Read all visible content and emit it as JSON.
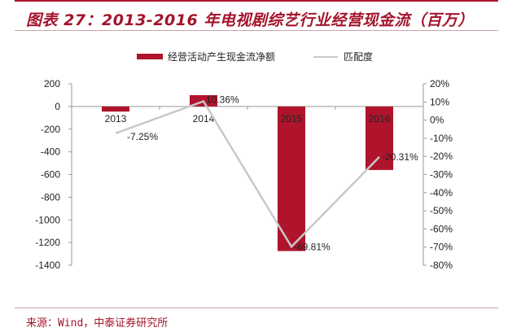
{
  "title": "图表 27：2013-2016 年电视剧综艺行业经营现金流（百万）",
  "source": "来源：Wind，中泰证券研究所",
  "colors": {
    "bar": "#b0142c",
    "line": "#c8c8c8",
    "accent": "#a3142b"
  },
  "chart_data": {
    "type": "bar+line",
    "categories": [
      "2013",
      "2014",
      "2015",
      "2016"
    ],
    "series": [
      {
        "name": "经营活动产生现金流净额",
        "type": "bar",
        "axis": "left",
        "values": [
          -45,
          100,
          -1275,
          -560
        ]
      },
      {
        "name": "匹配度",
        "type": "line",
        "axis": "right",
        "values": [
          -7.25,
          10.36,
          -69.81,
          -20.31
        ],
        "labels": [
          "-7.25%",
          "10.36%",
          "-69.81%",
          "-20.31%"
        ]
      }
    ],
    "left_axis": {
      "ylim": [
        -1400,
        200
      ],
      "ticks": [
        "200",
        "0",
        "-200",
        "-400",
        "-600",
        "-800",
        "-1000",
        "-1200",
        "-1400"
      ]
    },
    "right_axis": {
      "ylim": [
        -80,
        20
      ],
      "ticks": [
        "20%",
        "10%",
        "0%",
        "-10%",
        "-20%",
        "-30%",
        "-40%",
        "-50%",
        "-60%",
        "-70%",
        "-80%"
      ]
    },
    "legend": "top",
    "grid": false
  }
}
